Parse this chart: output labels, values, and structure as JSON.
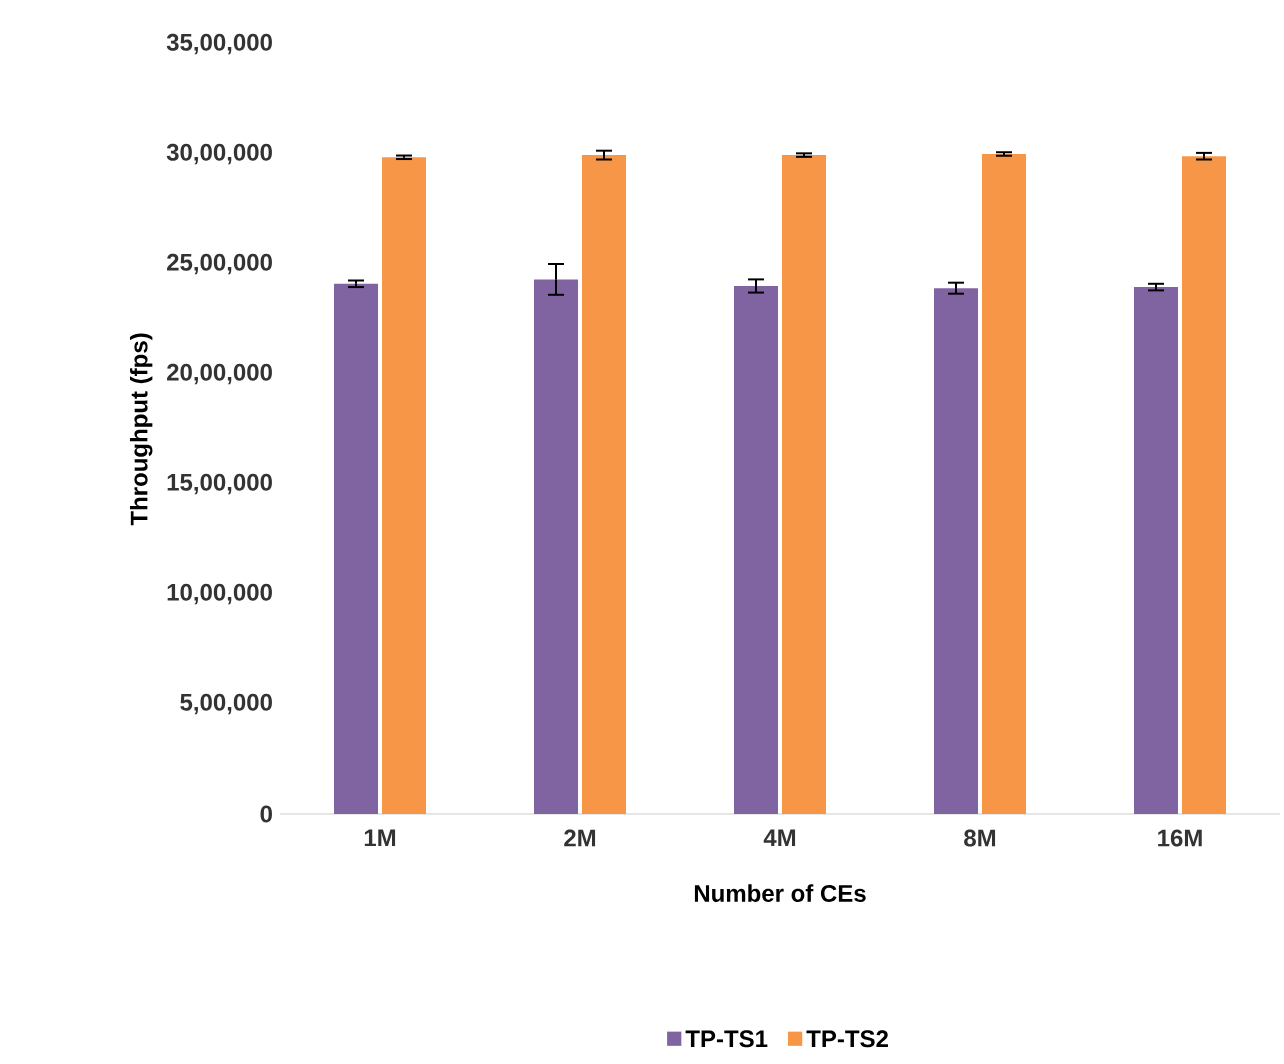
{
  "chart_data": {
    "type": "bar",
    "xlabel": "Number of CEs",
    "ylabel": "Throughput (fps)",
    "categories": [
      "1M",
      "2M",
      "4M",
      "8M",
      "16M"
    ],
    "series": [
      {
        "name": "TP-TS1",
        "color": "#8064a2",
        "values": [
          2410000,
          2430000,
          2400000,
          2390000,
          2395000
        ],
        "errors": [
          15000,
          70000,
          30000,
          25000,
          15000
        ]
      },
      {
        "name": "TP-TS2",
        "color": "#f79646",
        "values": [
          2985000,
          2995000,
          2995000,
          3000000,
          2990000
        ],
        "errors": [
          8000,
          20000,
          8000,
          8000,
          15000
        ]
      }
    ],
    "ylim": [
      0,
      3500000
    ],
    "yticks": [
      {
        "value": 0,
        "label": "0"
      },
      {
        "value": 500000,
        "label": "5,00,000"
      },
      {
        "value": 1000000,
        "label": "10,00,000"
      },
      {
        "value": 1500000,
        "label": "15,00,000"
      },
      {
        "value": 2000000,
        "label": "20,00,000"
      },
      {
        "value": 2500000,
        "label": "25,00,000"
      },
      {
        "value": 3000000,
        "label": "30,00,000"
      },
      {
        "value": 3500000,
        "label": "35,00,000"
      }
    ],
    "legend": "bottom",
    "grid": false
  }
}
